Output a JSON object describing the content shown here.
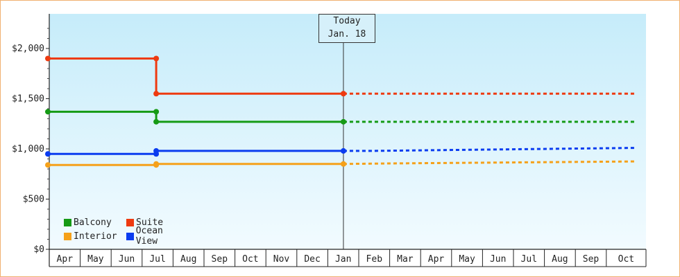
{
  "chart_data": {
    "type": "line",
    "xlabel": "",
    "ylabel": "",
    "ylim": [
      0,
      2300
    ],
    "yticks": [
      {
        "value": 0,
        "label": "$0"
      },
      {
        "value": 500,
        "label": "$500"
      },
      {
        "value": 1000,
        "label": "$1,000"
      },
      {
        "value": 1500,
        "label": "$1,500"
      },
      {
        "value": 2000,
        "label": "$2,000"
      }
    ],
    "months": [
      "Apr",
      "May",
      "Jun",
      "Jul",
      "Aug",
      "Sep",
      "Oct",
      "Nov",
      "Dec",
      "Jan",
      "Feb",
      "Mar",
      "Apr",
      "May",
      "Jun",
      "Jul",
      "Aug",
      "Sep",
      "Oct"
    ],
    "today": {
      "line1": "Today",
      "line2": "Jan. 18",
      "month_index": 9.55
    },
    "legend_placement": "bottom-left",
    "series": [
      {
        "name": "Suite",
        "color": "#ee3a10",
        "actual": [
          [
            0,
            1900
          ],
          [
            3.5,
            1900
          ],
          [
            3.5,
            1550
          ],
          [
            9.55,
            1550
          ]
        ],
        "markers": [
          [
            0,
            1900
          ],
          [
            3.5,
            1900
          ],
          [
            3.5,
            1550
          ],
          [
            9.55,
            1550
          ]
        ],
        "forecast": [
          [
            9.55,
            1550
          ],
          [
            19,
            1550
          ]
        ]
      },
      {
        "name": "Balcony",
        "color": "#159a15",
        "actual": [
          [
            0,
            1370
          ],
          [
            3.5,
            1370
          ],
          [
            3.5,
            1270
          ],
          [
            9.55,
            1270
          ]
        ],
        "markers": [
          [
            0,
            1370
          ],
          [
            3.5,
            1370
          ],
          [
            3.5,
            1270
          ],
          [
            9.55,
            1270
          ]
        ],
        "forecast": [
          [
            9.55,
            1270
          ],
          [
            19,
            1270
          ]
        ]
      },
      {
        "name": "Ocean View",
        "color": "#0a3cf0",
        "actual": [
          [
            0,
            950
          ],
          [
            3.5,
            950
          ],
          [
            3.5,
            980
          ],
          [
            9.55,
            980
          ]
        ],
        "markers": [
          [
            0,
            950
          ],
          [
            3.5,
            950
          ],
          [
            3.5,
            980
          ],
          [
            9.55,
            980
          ]
        ],
        "forecast": [
          [
            9.55,
            980
          ],
          [
            10.5,
            980
          ],
          [
            13.3,
            990
          ],
          [
            19,
            1010
          ]
        ]
      },
      {
        "name": "Interior",
        "color": "#f5a11a",
        "actual": [
          [
            0,
            840
          ],
          [
            3.5,
            840
          ],
          [
            3.5,
            850
          ],
          [
            9.55,
            850
          ]
        ],
        "markers": [
          [
            0,
            840
          ],
          [
            3.5,
            840
          ],
          [
            3.5,
            850
          ],
          [
            9.55,
            850
          ]
        ],
        "forecast": [
          [
            9.55,
            850
          ],
          [
            11,
            855
          ],
          [
            15,
            865
          ],
          [
            19,
            875
          ]
        ]
      }
    ]
  },
  "legend": {
    "items": [
      {
        "name": "Balcony",
        "color": "#159a15"
      },
      {
        "name": "Suite",
        "color": "#ee3a10"
      },
      {
        "name": "Interior",
        "color": "#f5a11a"
      },
      {
        "name": "Ocean View",
        "color": "#0a3cf0"
      }
    ]
  }
}
